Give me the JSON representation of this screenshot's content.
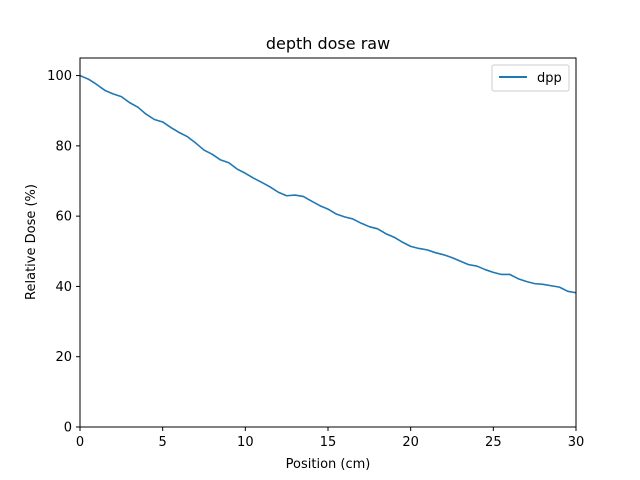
{
  "chart_data": {
    "type": "line",
    "title": "depth dose raw",
    "xlabel": "Position (cm)",
    "ylabel": "Relative Dose (%)",
    "xlim": [
      0,
      30
    ],
    "ylim": [
      0,
      105
    ],
    "xticks": [
      0,
      5,
      10,
      15,
      20,
      25,
      30
    ],
    "yticks": [
      0,
      20,
      40,
      60,
      80,
      100
    ],
    "grid": false,
    "legend_position": "upper right",
    "series": [
      {
        "name": "dpp",
        "color": "#1f77b4",
        "x": [
          0,
          0.5,
          1,
          1.5,
          2,
          2.5,
          3,
          3.5,
          4,
          4.5,
          5,
          5.5,
          6,
          6.5,
          7,
          7.5,
          8,
          8.5,
          9,
          9.5,
          10,
          10.5,
          11,
          11.5,
          12,
          12.5,
          13,
          13.5,
          14,
          14.5,
          15,
          15.5,
          16,
          16.5,
          17,
          17.5,
          18,
          18.5,
          19,
          19.5,
          20,
          20.5,
          21,
          21.5,
          22,
          22.5,
          23,
          23.5,
          24,
          24.5,
          25,
          25.5,
          26,
          26.5,
          27,
          27.5,
          28,
          28.5,
          29,
          29.5,
          30
        ],
        "y": [
          100,
          99.0,
          97.5,
          95.8,
          94.8,
          94.0,
          92.3,
          91.0,
          89.0,
          87.5,
          86.8,
          85.2,
          83.8,
          82.6,
          80.8,
          78.8,
          77.6,
          76.0,
          75.2,
          73.4,
          72.2,
          70.8,
          69.6,
          68.3,
          66.8,
          65.8,
          66.0,
          65.6,
          64.3,
          63.0,
          62.0,
          60.6,
          59.8,
          59.2,
          58.0,
          57.0,
          56.4,
          55.0,
          54.0,
          52.6,
          51.4,
          50.8,
          50.4,
          49.6,
          49.0,
          48.2,
          47.2,
          46.2,
          45.8,
          44.8,
          44.0,
          43.4,
          43.4,
          42.2,
          41.4,
          40.8,
          40.6,
          40.2,
          39.8,
          38.6,
          38.2
        ]
      }
    ]
  }
}
